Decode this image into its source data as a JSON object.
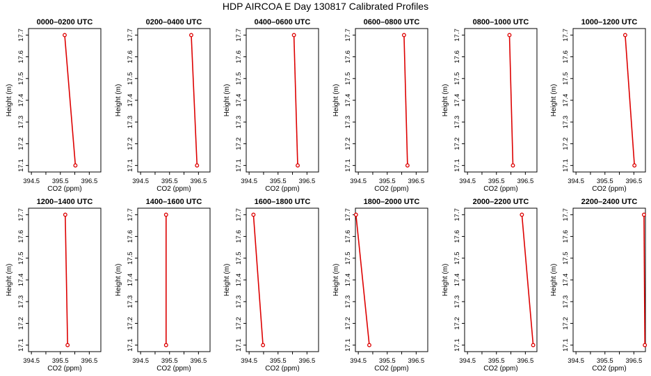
{
  "title": "HDP AIRCOA E  Day 130817  Calibrated Profiles",
  "colors": {
    "line": "#dd0000",
    "frame": "#000000"
  },
  "chart_data": [
    {
      "type": "line",
      "title": "0000–0200 UTC",
      "xlabel": "CO2 (ppm)",
      "ylabel": "Height (m)",
      "xlim": [
        394.4,
        396.9
      ],
      "ylim": [
        17.07,
        17.73
      ],
      "xticks": [
        "394.5",
        "395.5",
        "396.5"
      ],
      "yticks": [
        "17.1",
        "17.2",
        "17.3",
        "17.4",
        "17.5",
        "17.6",
        "17.7"
      ],
      "series": [
        {
          "x": [
            395.65,
            396.02
          ],
          "y": [
            17.7,
            17.1
          ]
        }
      ]
    },
    {
      "type": "line",
      "title": "0200–0400 UTC",
      "xlabel": "CO2 (ppm)",
      "ylabel": "Height (m)",
      "xlim": [
        394.4,
        396.9
      ],
      "ylim": [
        17.07,
        17.73
      ],
      "xticks": [
        "394.5",
        "395.5",
        "396.5"
      ],
      "yticks": [
        "17.1",
        "17.2",
        "17.3",
        "17.4",
        "17.5",
        "17.6",
        "17.7"
      ],
      "series": [
        {
          "x": [
            396.25,
            396.45
          ],
          "y": [
            17.7,
            17.1
          ]
        }
      ]
    },
    {
      "type": "line",
      "title": "0400–0600 UTC",
      "xlabel": "CO2 (ppm)",
      "ylabel": "Height (m)",
      "xlim": [
        394.4,
        396.9
      ],
      "ylim": [
        17.07,
        17.73
      ],
      "xticks": [
        "394.5",
        "395.5",
        "396.5"
      ],
      "yticks": [
        "17.1",
        "17.2",
        "17.3",
        "17.4",
        "17.5",
        "17.6",
        "17.7"
      ],
      "series": [
        {
          "x": [
            396.05,
            396.18
          ],
          "y": [
            17.7,
            17.1
          ]
        }
      ]
    },
    {
      "type": "line",
      "title": "0600–0800 UTC",
      "xlabel": "CO2 (ppm)",
      "ylabel": "Height (m)",
      "xlim": [
        394.4,
        396.9
      ],
      "ylim": [
        17.07,
        17.73
      ],
      "xticks": [
        "394.5",
        "395.5",
        "396.5"
      ],
      "yticks": [
        "17.1",
        "17.2",
        "17.3",
        "17.4",
        "17.5",
        "17.6",
        "17.7"
      ],
      "series": [
        {
          "x": [
            396.08,
            396.2
          ],
          "y": [
            17.7,
            17.1
          ]
        }
      ]
    },
    {
      "type": "line",
      "title": "0800–1000 UTC",
      "xlabel": "CO2 (ppm)",
      "ylabel": "Height (m)",
      "xlim": [
        394.4,
        396.9
      ],
      "ylim": [
        17.07,
        17.73
      ],
      "xticks": [
        "394.5",
        "395.5",
        "396.5"
      ],
      "yticks": [
        "17.1",
        "17.2",
        "17.3",
        "17.4",
        "17.5",
        "17.6",
        "17.7"
      ],
      "series": [
        {
          "x": [
            395.95,
            396.07
          ],
          "y": [
            17.7,
            17.1
          ]
        }
      ]
    },
    {
      "type": "line",
      "title": "1000–1200 UTC",
      "xlabel": "CO2 (ppm)",
      "ylabel": "Height (m)",
      "xlim": [
        394.4,
        396.9
      ],
      "ylim": [
        17.07,
        17.73
      ],
      "xticks": [
        "394.5",
        "395.5",
        "396.5"
      ],
      "yticks": [
        "17.1",
        "17.2",
        "17.3",
        "17.4",
        "17.5",
        "17.6",
        "17.7"
      ],
      "series": [
        {
          "x": [
            396.2,
            396.52
          ],
          "y": [
            17.7,
            17.1
          ]
        }
      ]
    },
    {
      "type": "line",
      "title": "1200–1400 UTC",
      "xlabel": "CO2 (ppm)",
      "ylabel": "Height (m)",
      "xlim": [
        394.4,
        396.9
      ],
      "ylim": [
        17.07,
        17.73
      ],
      "xticks": [
        "394.5",
        "395.5",
        "396.5"
      ],
      "yticks": [
        "17.1",
        "17.2",
        "17.3",
        "17.4",
        "17.5",
        "17.6",
        "17.7"
      ],
      "series": [
        {
          "x": [
            395.67,
            395.75
          ],
          "y": [
            17.7,
            17.1
          ]
        }
      ]
    },
    {
      "type": "line",
      "title": "1400–1600 UTC",
      "xlabel": "CO2 (ppm)",
      "ylabel": "Height (m)",
      "xlim": [
        394.4,
        396.9
      ],
      "ylim": [
        17.07,
        17.73
      ],
      "xticks": [
        "394.5",
        "395.5",
        "396.5"
      ],
      "yticks": [
        "17.1",
        "17.2",
        "17.3",
        "17.4",
        "17.5",
        "17.6",
        "17.7"
      ],
      "series": [
        {
          "x": [
            395.38,
            395.38
          ],
          "y": [
            17.7,
            17.1
          ]
        }
      ]
    },
    {
      "type": "line",
      "title": "1600–1800 UTC",
      "xlabel": "CO2 (ppm)",
      "ylabel": "Height (m)",
      "xlim": [
        394.4,
        396.9
      ],
      "ylim": [
        17.07,
        17.73
      ],
      "xticks": [
        "394.5",
        "395.5",
        "396.5"
      ],
      "yticks": [
        "17.1",
        "17.2",
        "17.3",
        "17.4",
        "17.5",
        "17.6",
        "17.7"
      ],
      "series": [
        {
          "x": [
            394.65,
            394.98
          ],
          "y": [
            17.7,
            17.1
          ]
        }
      ]
    },
    {
      "type": "line",
      "title": "1800–2000 UTC",
      "xlabel": "CO2 (ppm)",
      "ylabel": "Height (m)",
      "xlim": [
        394.4,
        396.9
      ],
      "ylim": [
        17.07,
        17.73
      ],
      "xticks": [
        "394.5",
        "395.5",
        "396.5"
      ],
      "yticks": [
        "17.1",
        "17.2",
        "17.3",
        "17.4",
        "17.5",
        "17.6",
        "17.7"
      ],
      "series": [
        {
          "x": [
            394.42,
            394.88
          ],
          "y": [
            17.7,
            17.1
          ]
        }
      ]
    },
    {
      "type": "line",
      "title": "2000–2200 UTC",
      "xlabel": "CO2 (ppm)",
      "ylabel": "Height (m)",
      "xlim": [
        394.4,
        396.9
      ],
      "ylim": [
        17.07,
        17.73
      ],
      "xticks": [
        "394.5",
        "395.5",
        "396.5"
      ],
      "yticks": [
        "17.1",
        "17.2",
        "17.3",
        "17.4",
        "17.5",
        "17.6",
        "17.7"
      ],
      "series": [
        {
          "x": [
            396.38,
            396.77
          ],
          "y": [
            17.7,
            17.1
          ]
        }
      ]
    },
    {
      "type": "line",
      "title": "2200–2400 UTC",
      "xlabel": "CO2 (ppm)",
      "ylabel": "Height (m)",
      "xlim": [
        394.4,
        396.9
      ],
      "ylim": [
        17.07,
        17.73
      ],
      "xticks": [
        "394.5",
        "395.5",
        "396.5"
      ],
      "yticks": [
        "17.1",
        "17.2",
        "17.3",
        "17.4",
        "17.5",
        "17.6",
        "17.7"
      ],
      "series": [
        {
          "x": [
            396.85,
            396.88
          ],
          "y": [
            17.7,
            17.1
          ]
        }
      ]
    }
  ]
}
